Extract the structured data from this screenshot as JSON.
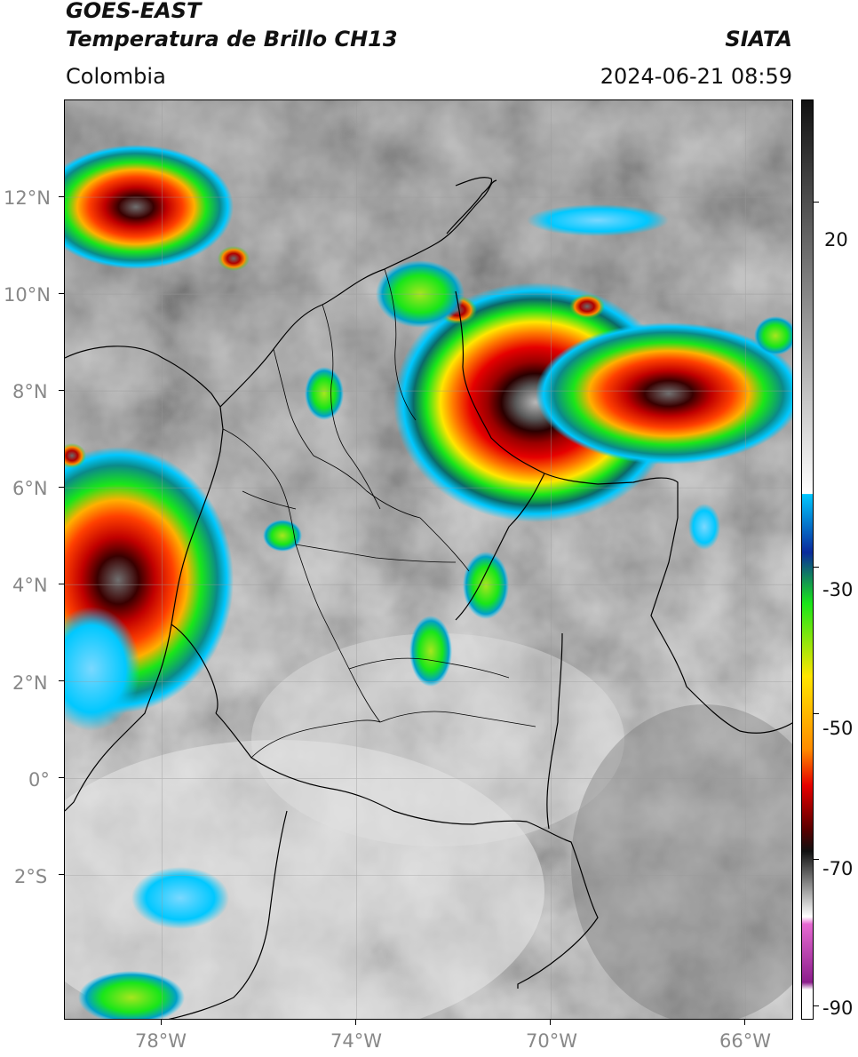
{
  "header": {
    "satellite": "GOES-EAST",
    "product": "Temperatura de Brillo CH13",
    "region": "Colombia",
    "org": "SIATA",
    "datetime": "2024-06-21 08:59"
  },
  "map": {
    "lon_range": [
      -80,
      -65
    ],
    "lat_range": [
      -5,
      14
    ],
    "lat_ticks": [
      {
        "value": 12,
        "label": "12°N"
      },
      {
        "value": 10,
        "label": "10°N"
      },
      {
        "value": 8,
        "label": "8°N"
      },
      {
        "value": 6,
        "label": "6°N"
      },
      {
        "value": 4,
        "label": "4°N"
      },
      {
        "value": 2,
        "label": "2°N"
      },
      {
        "value": 0,
        "label": "0°"
      },
      {
        "value": -2,
        "label": "2°S"
      }
    ],
    "lon_ticks": [
      {
        "value": -78,
        "label": "78°W"
      },
      {
        "value": -74,
        "label": "74°W"
      },
      {
        "value": -70,
        "label": "70°W"
      },
      {
        "value": -66,
        "label": "66°W"
      }
    ],
    "gridlines": true
  },
  "colorbar": {
    "range": [
      -92,
      34
    ],
    "ticks": [
      {
        "value": 20,
        "label": "20"
      },
      {
        "value": -30,
        "label": "-30"
      },
      {
        "value": -50,
        "label": "-50"
      },
      {
        "value": -70,
        "label": "-70"
      },
      {
        "value": -90,
        "label": "-90"
      }
    ],
    "colors": {
      "grey_top": "#111111",
      "grey_bottom": "#ffffff",
      "cyan": "#00c8ff",
      "blue": "#0a2a9c",
      "green": "#19e619",
      "yellow": "#ffe600",
      "orange": "#ff8c00",
      "red": "#e60000",
      "dark_red": "#5a0000",
      "magenta": "#e66ad2",
      "purple": "#8c1e8c"
    }
  }
}
